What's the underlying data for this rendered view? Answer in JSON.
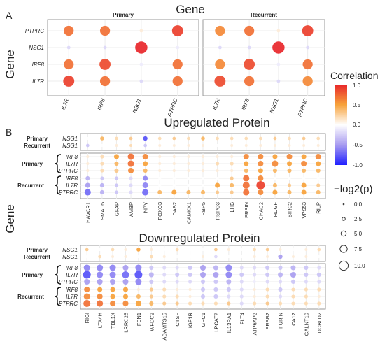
{
  "colors": {
    "pos": "#e8262a",
    "mid": "#f7a23a",
    "neutral": "#ffffff",
    "neg1": "#a89cf0",
    "neg": "#1f1fff",
    "frame": "#9a9a9a",
    "grid": "#ececec"
  },
  "figure": {
    "panel_a_letter": "A",
    "panel_b_letter": "B",
    "gene_title": "Gene",
    "gene_ylabel": "Gene",
    "gene_ylabel_b": "Gene",
    "primary_label": "Primary",
    "recurrent_label": "Recurrent",
    "upregulated_title": "Upregulated Protein",
    "downregulated_title": "Downregulated Protein",
    "row_group_primary": "Primary",
    "row_group_recurrent": "Recurrent"
  },
  "legend": {
    "color_title": "Correlation",
    "color_ticks": [
      "1.0",
      "0.5",
      "0.0",
      "-0.5",
      "-1.0"
    ],
    "size_title": "−log2(p)",
    "size_ticks": [
      "0.0",
      "2.5",
      "5.0",
      "7.5",
      "10.0"
    ]
  },
  "chart_data": [
    {
      "type": "scatter",
      "name_id": "gene-gene",
      "x_categories": [
        "IL7R",
        "IRF8",
        "NSG1",
        "PTPRC"
      ],
      "y_categories": [
        "PTPRC",
        "NSG1",
        "IRF8",
        "IL7R"
      ],
      "facets": [
        {
          "label": "Primary",
          "correlation": [
            [
              0.7,
              0.7,
              0.1,
              0.9
            ],
            [
              -0.2,
              -0.2,
              1.0,
              -0.1
            ],
            [
              0.7,
              0.85,
              -0.1,
              0.7
            ],
            [
              0.9,
              0.7,
              -0.2,
              0.7
            ]
          ],
          "neg_log2_p": [
            [
              7,
              7,
              1,
              8
            ],
            [
              1,
              1,
              9,
              1
            ],
            [
              7,
              8,
              1,
              7
            ],
            [
              8,
              7,
              1,
              7
            ]
          ]
        },
        {
          "label": "Recurrent",
          "correlation": [
            [
              0.6,
              0.7,
              0.1,
              0.9
            ],
            [
              -0.2,
              -0.2,
              1.0,
              -0.2
            ],
            [
              0.6,
              0.85,
              -0.1,
              0.7
            ],
            [
              0.85,
              0.7,
              -0.2,
              0.6
            ]
          ],
          "neg_log2_p": [
            [
              7,
              7,
              1,
              8
            ],
            [
              1,
              1,
              9,
              1
            ],
            [
              7,
              8,
              1,
              7
            ],
            [
              8,
              7,
              1,
              7
            ]
          ]
        }
      ],
      "color_range": [
        -1,
        1
      ],
      "size_range": [
        0,
        10
      ]
    },
    {
      "type": "scatter",
      "name_id": "upregulated-protein",
      "title": "Upregulated Protein",
      "x_categories": [
        "HAVCR1",
        "SMAD5",
        "GFAP",
        "AMBP",
        "NPY",
        "FOXO3",
        "DAB2",
        "CAMKK1",
        "RBP5",
        "RSPO3",
        "LHB",
        "ERBIN",
        "CHAC2",
        "HDGF",
        "BIRC2",
        "VPS53",
        "RILP"
      ],
      "top_rows": [
        {
          "label": "NSG1",
          "group": "Primary",
          "correlation": [
            0,
            0.4,
            0.2,
            0.3,
            -0.8,
            0.2,
            0.3,
            0.2,
            0.4,
            0.2,
            0.2,
            0.2,
            0.2,
            0.3,
            0.2,
            0.3,
            0.2
          ],
          "neg_log2_p": [
            1,
            3,
            2,
            2,
            4,
            2,
            2,
            2,
            3,
            2,
            2,
            2,
            2,
            2,
            2,
            2,
            2
          ]
        },
        {
          "label": "NSG1",
          "group": "Recurrent",
          "correlation": [
            -0.3,
            0,
            0.1,
            0.2,
            -0.3,
            0.1,
            0.1,
            0.1,
            0.1,
            0,
            0.1,
            0.1,
            0.1,
            0.1,
            0.1,
            0.1,
            0.1
          ],
          "neg_log2_p": [
            2,
            1,
            1,
            1,
            2,
            1,
            1,
            1,
            1,
            1,
            1,
            1,
            1,
            1,
            1,
            1,
            1
          ]
        }
      ],
      "bottom_rows": [
        {
          "label": "IRF8",
          "group": "Primary",
          "correlation": [
            0.1,
            0.2,
            0.5,
            0.7,
            0.6,
            0.1,
            0.1,
            0.1,
            0.1,
            0.1,
            0.1,
            0.6,
            0.6,
            0.5,
            0.6,
            0.5,
            0.6
          ],
          "neg_log2_p": [
            1,
            2,
            4,
            6,
            5,
            1,
            1,
            1,
            1,
            1,
            1,
            5,
            5,
            4,
            5,
            4,
            5
          ]
        },
        {
          "label": "IL7R",
          "group": "Primary",
          "correlation": [
            0.1,
            0.2,
            0.4,
            0.7,
            0.5,
            0.1,
            0.1,
            0.1,
            0.1,
            0.2,
            0.2,
            0.5,
            0.6,
            0.6,
            0.5,
            0.6,
            0.5
          ],
          "neg_log2_p": [
            1,
            2,
            3,
            6,
            4,
            1,
            1,
            1,
            1,
            2,
            2,
            4,
            5,
            6,
            4,
            5,
            4
          ],
          "note": ""
        },
        {
          "label": "PTPRC",
          "group": "Primary",
          "correlation": [
            0.1,
            0.2,
            0.3,
            0.6,
            0.4,
            0.1,
            0.1,
            0.1,
            0.1,
            0.1,
            0.1,
            0.4,
            0.5,
            0.4,
            0.4,
            0.4,
            0.4
          ],
          "neg_log2_p": [
            1,
            2,
            3,
            5,
            3,
            1,
            1,
            1,
            1,
            1,
            1,
            3,
            4,
            3,
            3,
            3,
            3
          ]
        },
        {
          "label": "IRF8",
          "group": "Recurrent",
          "correlation": [
            -0.4,
            -0.3,
            -0.3,
            -0.2,
            -0.6,
            0,
            0,
            0,
            0,
            0,
            0.3,
            0.7,
            0.6,
            0,
            0,
            0,
            0
          ],
          "neg_log2_p": [
            3,
            2,
            2,
            2,
            4,
            1,
            1,
            1,
            1,
            1,
            2,
            6,
            5,
            1,
            1,
            1,
            1
          ]
        },
        {
          "label": "IL7R",
          "group": "Recurrent",
          "correlation": [
            -0.5,
            -0.4,
            -0.3,
            -0.2,
            -0.6,
            0,
            0,
            0,
            0,
            0.5,
            0.4,
            0.7,
            0.9,
            0.4,
            0.3,
            0.5,
            0.3
          ],
          "neg_log2_p": [
            4,
            3,
            2,
            2,
            5,
            1,
            1,
            1,
            1,
            4,
            3,
            7,
            9,
            3,
            2,
            4,
            2
          ]
        },
        {
          "label": "PTPRC",
          "group": "Recurrent",
          "correlation": [
            -0.7,
            -0.4,
            -0.3,
            -0.2,
            -0.7,
            0.4,
            0.5,
            0.4,
            0.4,
            0.3,
            0.3,
            0.7,
            0.6,
            0.5,
            0.4,
            0.5,
            0.4
          ],
          "neg_log2_p": [
            6,
            3,
            2,
            2,
            6,
            3,
            4,
            3,
            3,
            2,
            2,
            6,
            5,
            4,
            3,
            4,
            3
          ]
        }
      ]
    },
    {
      "type": "scatter",
      "name_id": "downregulated-protein",
      "title": "Downregulated Protein",
      "x_categories": [
        "RIGI",
        "LTA4H",
        "TBL1X",
        "LRRC25",
        "FEN1",
        "WFDC2",
        "ADAMTS15",
        "CTSF",
        "IGF1R",
        "GPC1",
        "LPCAT2",
        "IL13RA1",
        "FLT4",
        "ATP6AP2",
        "ERBB2",
        "FURIN",
        "CA12",
        "GALNT10",
        "DCBLD2"
      ],
      "top_rows": [
        {
          "label": "NSG1",
          "group": "Primary",
          "correlation": [
            0.3,
            0,
            0.2,
            0.1,
            0.5,
            0.1,
            0,
            0.2,
            0,
            0,
            0.3,
            0.1,
            0,
            0.2,
            0.3,
            0.1,
            0,
            0.1,
            0.2
          ],
          "neg_log2_p": [
            2,
            1,
            2,
            1,
            3,
            1,
            1,
            2,
            1,
            1,
            2,
            1,
            1,
            2,
            2,
            1,
            1,
            1,
            2
          ]
        },
        {
          "label": "NSG1",
          "group": "Recurrent",
          "correlation": [
            0,
            0.2,
            0.1,
            0.1,
            0,
            0.2,
            0.1,
            0,
            0,
            0.1,
            -0.2,
            0,
            0,
            0.1,
            0.1,
            -0.5,
            0.1,
            0.1,
            0
          ],
          "neg_log2_p": [
            1,
            2,
            1,
            1,
            1,
            2,
            1,
            1,
            1,
            1,
            2,
            1,
            1,
            1,
            1,
            4,
            1,
            1,
            1
          ]
        }
      ],
      "bottom_rows": [
        {
          "label": "IRF8",
          "group": "Primary",
          "correlation": [
            -0.6,
            -0.6,
            -0.6,
            -0.5,
            -0.6,
            -0.3,
            -0.2,
            -0.2,
            -0.3,
            -0.5,
            -0.4,
            -0.6,
            -0.2,
            -0.2,
            -0.3,
            -0.3,
            -0.4,
            -0.3,
            -0.2
          ],
          "neg_log2_p": [
            6,
            6,
            6,
            5,
            6,
            3,
            2,
            2,
            3,
            5,
            4,
            6,
            2,
            2,
            3,
            3,
            4,
            3,
            2
          ]
        },
        {
          "label": "IL7R",
          "group": "Primary",
          "correlation": [
            -0.8,
            -0.6,
            -0.6,
            -0.7,
            -0.8,
            -0.4,
            -0.2,
            -0.3,
            -0.3,
            -0.5,
            -0.5,
            -0.6,
            -0.3,
            -0.2,
            -0.3,
            -0.4,
            -0.5,
            -0.3,
            -0.3
          ],
          "neg_log2_p": [
            8,
            6,
            6,
            7,
            8,
            4,
            2,
            3,
            3,
            5,
            5,
            6,
            3,
            2,
            3,
            4,
            5,
            3,
            3
          ]
        },
        {
          "label": "PTPRC",
          "group": "Primary",
          "correlation": [
            -0.5,
            -0.5,
            -0.5,
            -0.5,
            -0.6,
            -0.3,
            -0.2,
            -0.2,
            -0.2,
            -0.3,
            -0.3,
            -0.4,
            -0.2,
            -0.1,
            -0.2,
            -0.2,
            -0.3,
            -0.2,
            -0.2
          ],
          "neg_log2_p": [
            5,
            5,
            5,
            5,
            6,
            3,
            2,
            2,
            2,
            3,
            3,
            4,
            2,
            1,
            2,
            2,
            3,
            2,
            2
          ]
        },
        {
          "label": "IRF8",
          "group": "Recurrent",
          "correlation": [
            0.6,
            0.5,
            0.5,
            0.5,
            0.1,
            0.3,
            0.2,
            0.1,
            0.1,
            -0.3,
            -0.3,
            -0.3,
            -0.2,
            0.1,
            0.2,
            -0.3,
            0.2,
            0.2,
            0.2
          ],
          "neg_log2_p": [
            5,
            4,
            4,
            4,
            1,
            2,
            2,
            1,
            1,
            3,
            3,
            3,
            2,
            1,
            2,
            3,
            2,
            2,
            2
          ]
        },
        {
          "label": "IL7R",
          "group": "Recurrent",
          "correlation": [
            0.6,
            0.6,
            0.5,
            0.5,
            0.4,
            0.3,
            0.2,
            0.2,
            0.1,
            -0.3,
            -0.3,
            -0.2,
            -0.2,
            0.1,
            0.2,
            -0.2,
            0.2,
            0.2,
            0.1
          ],
          "neg_log2_p": [
            6,
            5,
            4,
            4,
            3,
            2,
            2,
            2,
            1,
            3,
            3,
            2,
            2,
            1,
            2,
            2,
            2,
            2,
            1
          ]
        },
        {
          "label": "PTPRC",
          "group": "Recurrent",
          "correlation": [
            0.7,
            0.7,
            0.6,
            0.6,
            0.5,
            0.4,
            0.3,
            0.3,
            0.2,
            0.2,
            0.2,
            0.3,
            -0.2,
            0.2,
            0.3,
            0.2,
            0.2,
            0.2,
            0.2
          ],
          "neg_log2_p": [
            7,
            6,
            5,
            5,
            5,
            3,
            2,
            2,
            2,
            2,
            2,
            2,
            2,
            2,
            2,
            2,
            2,
            2,
            2
          ]
        }
      ]
    }
  ]
}
